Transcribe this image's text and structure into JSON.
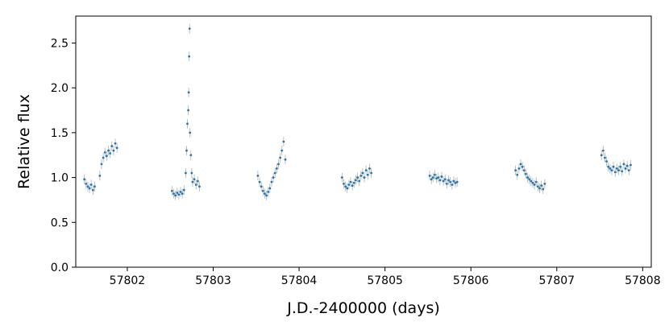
{
  "chart_data": {
    "type": "scatter",
    "title": "",
    "xlabel": "J.D.-2400000 (days)",
    "ylabel": "Relative flux",
    "xlim": [
      57801.4,
      57808.1
    ],
    "ylim": [
      0.0,
      2.8
    ],
    "x_ticks": [
      57802,
      57803,
      57804,
      57805,
      57806,
      57807,
      57808
    ],
    "x_tick_labels": [
      "57802",
      "57803",
      "57804",
      "57805",
      "57806",
      "57807",
      "57808"
    ],
    "y_ticks": [
      0.0,
      0.5,
      1.0,
      1.5,
      2.0,
      2.5
    ],
    "y_tick_labels": [
      "0.0",
      "0.5",
      "1.0",
      "1.5",
      "2.0",
      "2.5"
    ],
    "grid": false,
    "legend": "none",
    "marker_color": "#1f77b4",
    "errorbar_color": "#b0b0b0",
    "series": [
      {
        "points": [
          [
            57801.5,
            0.98
          ],
          [
            57801.52,
            0.93
          ],
          [
            57801.54,
            0.9
          ],
          [
            57801.56,
            0.88
          ],
          [
            57801.58,
            0.92
          ],
          [
            57801.6,
            0.86
          ],
          [
            57801.62,
            0.9
          ],
          [
            57801.68,
            1.02
          ],
          [
            57801.7,
            1.15
          ],
          [
            57801.72,
            1.22
          ],
          [
            57801.74,
            1.28
          ],
          [
            57801.76,
            1.24
          ],
          [
            57801.78,
            1.3
          ],
          [
            57801.8,
            1.27
          ],
          [
            57801.82,
            1.35
          ],
          [
            57801.84,
            1.3
          ],
          [
            57801.86,
            1.38
          ],
          [
            57801.88,
            1.33
          ],
          [
            57802.52,
            0.85
          ],
          [
            57802.54,
            0.82
          ],
          [
            57802.56,
            0.8
          ],
          [
            57802.58,
            0.83
          ],
          [
            57802.6,
            0.81
          ],
          [
            57802.62,
            0.84
          ],
          [
            57802.64,
            0.82
          ],
          [
            57802.66,
            0.86
          ],
          [
            57802.68,
            1.05
          ],
          [
            57802.69,
            1.3
          ],
          [
            57802.7,
            1.6
          ],
          [
            57802.71,
            1.75
          ],
          [
            57802.715,
            1.95
          ],
          [
            57802.72,
            2.35
          ],
          [
            57802.725,
            2.66
          ],
          [
            57802.73,
            1.5
          ],
          [
            57802.74,
            1.25
          ],
          [
            57802.75,
            1.05
          ],
          [
            57802.76,
            0.95
          ],
          [
            57802.78,
            0.98
          ],
          [
            57802.8,
            0.92
          ],
          [
            57802.82,
            0.96
          ],
          [
            57802.84,
            0.9
          ],
          [
            57803.52,
            1.02
          ],
          [
            57803.54,
            0.95
          ],
          [
            57803.56,
            0.9
          ],
          [
            57803.58,
            0.85
          ],
          [
            57803.6,
            0.82
          ],
          [
            57803.62,
            0.8
          ],
          [
            57803.64,
            0.84
          ],
          [
            57803.66,
            0.88
          ],
          [
            57803.68,
            0.95
          ],
          [
            57803.7,
            1.0
          ],
          [
            57803.72,
            1.05
          ],
          [
            57803.74,
            1.1
          ],
          [
            57803.76,
            1.15
          ],
          [
            57803.78,
            1.22
          ],
          [
            57803.8,
            1.3
          ],
          [
            57803.82,
            1.4
          ],
          [
            57803.84,
            1.2
          ],
          [
            57804.5,
            1.0
          ],
          [
            57804.52,
            0.93
          ],
          [
            57804.54,
            0.9
          ],
          [
            57804.56,
            0.88
          ],
          [
            57804.58,
            0.92
          ],
          [
            57804.6,
            0.95
          ],
          [
            57804.62,
            0.91
          ],
          [
            57804.64,
            0.94
          ],
          [
            57804.66,
            0.97
          ],
          [
            57804.68,
            1.0
          ],
          [
            57804.7,
            0.96
          ],
          [
            57804.72,
            1.02
          ],
          [
            57804.74,
            1.05
          ],
          [
            57804.76,
            1.0
          ],
          [
            57804.78,
            1.08
          ],
          [
            57804.8,
            1.03
          ],
          [
            57804.82,
            1.1
          ],
          [
            57804.84,
            1.05
          ],
          [
            57805.52,
            1.02
          ],
          [
            57805.54,
            0.98
          ],
          [
            57805.56,
            1.0
          ],
          [
            57805.58,
            1.03
          ],
          [
            57805.6,
            0.99
          ],
          [
            57805.62,
            1.0
          ],
          [
            57805.64,
            0.97
          ],
          [
            57805.66,
            1.01
          ],
          [
            57805.68,
            0.96
          ],
          [
            57805.7,
            0.98
          ],
          [
            57805.72,
            0.93
          ],
          [
            57805.74,
            0.97
          ],
          [
            57805.76,
            0.95
          ],
          [
            57805.78,
            0.92
          ],
          [
            57805.8,
            0.96
          ],
          [
            57805.82,
            0.94
          ],
          [
            57805.84,
            0.95
          ],
          [
            57806.52,
            1.08
          ],
          [
            57806.54,
            1.03
          ],
          [
            57806.56,
            1.1
          ],
          [
            57806.58,
            1.15
          ],
          [
            57806.6,
            1.12
          ],
          [
            57806.62,
            1.08
          ],
          [
            57806.64,
            1.04
          ],
          [
            57806.66,
            1.0
          ],
          [
            57806.68,
            0.98
          ],
          [
            57806.7,
            0.96
          ],
          [
            57806.72,
            0.94
          ],
          [
            57806.74,
            0.92
          ],
          [
            57806.76,
            0.95
          ],
          [
            57806.78,
            0.9
          ],
          [
            57806.8,
            0.88
          ],
          [
            57806.82,
            0.91
          ],
          [
            57806.84,
            0.87
          ],
          [
            57806.86,
            0.93
          ],
          [
            57807.52,
            1.25
          ],
          [
            57807.54,
            1.3
          ],
          [
            57807.56,
            1.22
          ],
          [
            57807.58,
            1.18
          ],
          [
            57807.6,
            1.12
          ],
          [
            57807.62,
            1.1
          ],
          [
            57807.64,
            1.08
          ],
          [
            57807.66,
            1.12
          ],
          [
            57807.68,
            1.06
          ],
          [
            57807.7,
            1.1
          ],
          [
            57807.72,
            1.08
          ],
          [
            57807.74,
            1.12
          ],
          [
            57807.76,
            1.07
          ],
          [
            57807.78,
            1.15
          ],
          [
            57807.8,
            1.1
          ],
          [
            57807.82,
            1.13
          ],
          [
            57807.84,
            1.08
          ],
          [
            57807.86,
            1.14
          ]
        ]
      }
    ]
  }
}
